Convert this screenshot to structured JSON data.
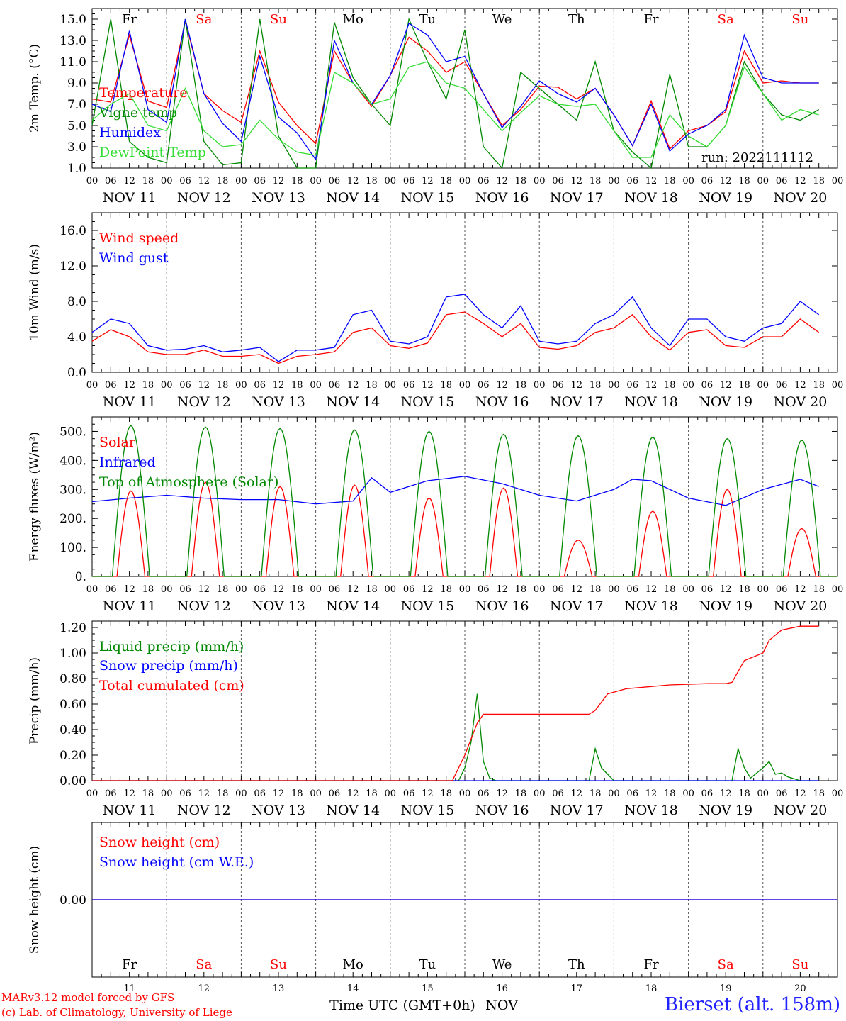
{
  "chart_data": [
    {
      "type": "line",
      "ylabel": "2m Temp. (°C)",
      "ylim": [
        1.0,
        16.0
      ],
      "yticks": [
        "15.0",
        "13.0",
        "11.0",
        "9.0",
        "7.0",
        "5.0",
        "3.0",
        "1.0"
      ],
      "annotation": "run: 2022111112",
      "series": [
        {
          "name": "Temperature",
          "color": "#ff0000",
          "x": [
            0,
            6,
            12,
            18,
            24,
            30,
            36,
            42,
            48,
            54,
            60,
            66,
            72,
            78,
            84,
            90,
            96,
            102,
            108,
            114,
            120,
            126,
            132,
            138,
            144,
            150,
            156,
            162,
            168,
            174,
            180,
            186,
            192,
            198,
            204,
            210,
            216,
            222,
            228,
            234
          ],
          "values": [
            7.5,
            7.2,
            13.5,
            7.3,
            6.7,
            14.8,
            8.0,
            6.4,
            5.3,
            12.0,
            7.2,
            5.0,
            3.3,
            12.0,
            9.0,
            6.8,
            9.7,
            13.3,
            12.0,
            10.0,
            11.0,
            8.0,
            5.0,
            6.5,
            8.7,
            8.6,
            7.5,
            8.5,
            6.0,
            3.1,
            7.3,
            2.8,
            4.5,
            5.0,
            6.3,
            12.0,
            9.0,
            9.2,
            9.0,
            9.0
          ]
        },
        {
          "name": "Vigne temp",
          "color": "#008800",
          "x": [
            0,
            6,
            12,
            18,
            24,
            30,
            36,
            42,
            48,
            54,
            60,
            66,
            72,
            78,
            84,
            90,
            96,
            102,
            108,
            114,
            120,
            126,
            132,
            138,
            144,
            150,
            156,
            162,
            168,
            174,
            180,
            186,
            192,
            198,
            204,
            210,
            216,
            222,
            228,
            234
          ],
          "values": [
            5.0,
            15.0,
            3.5,
            2.0,
            1.5,
            15.0,
            3.5,
            1.3,
            1.5,
            15.0,
            4.0,
            1.0,
            1.0,
            14.7,
            9.5,
            7.0,
            5.0,
            15.0,
            11.0,
            7.5,
            14.0,
            3.0,
            1.0,
            10.0,
            8.5,
            7.0,
            5.5,
            11.0,
            4.5,
            2.5,
            1.0,
            9.8,
            3.0,
            3.0,
            5.0,
            11.0,
            8.0,
            6.0,
            5.5,
            6.5
          ]
        },
        {
          "name": "Humidex",
          "color": "#0000ff",
          "x": [
            0,
            6,
            12,
            18,
            24,
            30,
            36,
            42,
            48,
            54,
            60,
            66,
            72,
            78,
            84,
            90,
            96,
            102,
            108,
            114,
            120,
            126,
            132,
            138,
            144,
            150,
            156,
            162,
            168,
            174,
            180,
            186,
            192,
            198,
            204,
            210,
            216,
            222,
            228,
            234
          ],
          "values": [
            7.0,
            6.3,
            13.9,
            6.5,
            5.3,
            15.0,
            8.0,
            5.2,
            3.5,
            11.5,
            5.8,
            4.3,
            1.8,
            13.0,
            9.0,
            7.0,
            9.7,
            14.6,
            13.5,
            11.0,
            11.5,
            8.0,
            4.8,
            6.8,
            9.2,
            8.0,
            7.2,
            8.5,
            6.0,
            3.1,
            7.0,
            2.6,
            4.2,
            5.0,
            6.5,
            13.5,
            9.5,
            9.0,
            9.0,
            9.0
          ]
        },
        {
          "name": "DewPoint Temp",
          "color": "#33dd33",
          "x": [
            0,
            6,
            12,
            18,
            24,
            30,
            36,
            42,
            48,
            54,
            60,
            66,
            72,
            78,
            84,
            90,
            96,
            102,
            108,
            114,
            120,
            126,
            132,
            138,
            144,
            150,
            156,
            162,
            168,
            174,
            180,
            186,
            192,
            198,
            204,
            210,
            216,
            222,
            228,
            234
          ],
          "values": [
            5.5,
            7.0,
            8.0,
            5.0,
            4.5,
            8.5,
            4.5,
            3.0,
            3.2,
            5.5,
            3.7,
            2.5,
            2.2,
            10.0,
            9.0,
            7.0,
            7.5,
            10.5,
            11.0,
            9.0,
            8.5,
            6.5,
            4.5,
            6.2,
            7.8,
            7.0,
            6.8,
            7.0,
            4.5,
            2.0,
            2.0,
            6.0,
            4.0,
            3.0,
            5.0,
            10.5,
            8.0,
            5.5,
            6.5,
            6.0
          ]
        }
      ]
    },
    {
      "type": "line",
      "ylabel": "10m Wind (m/s)",
      "ylim": [
        0.0,
        18.0
      ],
      "yticks": [
        "16.0",
        "12.0",
        "8.0",
        "4.0",
        "0.0"
      ],
      "reference_line": 5.0,
      "series": [
        {
          "name": "Wind speed",
          "color": "#ff0000",
          "x": [
            0,
            6,
            12,
            18,
            24,
            30,
            36,
            42,
            48,
            54,
            60,
            66,
            72,
            78,
            84,
            90,
            96,
            102,
            108,
            114,
            120,
            126,
            132,
            138,
            144,
            150,
            156,
            162,
            168,
            174,
            180,
            186,
            192,
            198,
            204,
            210,
            216,
            222,
            228,
            234
          ],
          "values": [
            3.5,
            4.8,
            4.0,
            2.3,
            2.0,
            2.0,
            2.5,
            1.8,
            1.8,
            2.0,
            1.0,
            1.8,
            2.0,
            2.3,
            4.5,
            5.0,
            3.0,
            2.7,
            3.3,
            6.5,
            6.8,
            5.5,
            4.0,
            5.5,
            2.8,
            2.6,
            3.0,
            4.5,
            5.0,
            6.5,
            4.0,
            2.5,
            4.5,
            4.8,
            3.0,
            2.8,
            4.0,
            4.0,
            6.0,
            4.5
          ]
        },
        {
          "name": "Wind gust",
          "color": "#0000ff",
          "x": [
            0,
            6,
            12,
            18,
            24,
            30,
            36,
            42,
            48,
            54,
            60,
            66,
            72,
            78,
            84,
            90,
            96,
            102,
            108,
            114,
            120,
            126,
            132,
            138,
            144,
            150,
            156,
            162,
            168,
            174,
            180,
            186,
            192,
            198,
            204,
            210,
            216,
            222,
            228,
            234
          ],
          "values": [
            4.5,
            6.0,
            5.5,
            3.0,
            2.5,
            2.6,
            3.0,
            2.3,
            2.5,
            2.8,
            1.2,
            2.5,
            2.5,
            2.8,
            6.5,
            7.0,
            3.5,
            3.2,
            4.0,
            8.5,
            8.8,
            6.5,
            5.0,
            7.5,
            3.5,
            3.2,
            3.5,
            5.5,
            6.5,
            8.5,
            5.0,
            3.0,
            6.0,
            6.0,
            4.0,
            3.5,
            5.0,
            5.5,
            8.0,
            6.5
          ]
        }
      ]
    },
    {
      "type": "line",
      "ylabel": "Energy fluxes (W/m²)",
      "ylim": [
        0,
        550
      ],
      "yticks": [
        "500.",
        "400.",
        "300.",
        "200.",
        "100.",
        "0."
      ],
      "series": [
        {
          "name": "Solar",
          "color": "#ff0000",
          "peaks": [
            295,
            325,
            310,
            315,
            270,
            305,
            125,
            225,
            300,
            165
          ]
        },
        {
          "name": "Infrared",
          "color": "#0000ff",
          "x": [
            0,
            12,
            24,
            36,
            48,
            60,
            72,
            84,
            90,
            96,
            108,
            120,
            132,
            144,
            156,
            168,
            174,
            180,
            192,
            204,
            216,
            228,
            234
          ],
          "values": [
            258,
            270,
            280,
            270,
            265,
            265,
            250,
            260,
            340,
            290,
            330,
            345,
            320,
            280,
            260,
            300,
            335,
            330,
            270,
            245,
            300,
            335,
            310
          ]
        },
        {
          "name": "Top of Atmosphere (Solar)",
          "color": "#008800",
          "peaks": [
            520,
            515,
            510,
            505,
            500,
            490,
            485,
            480,
            475,
            470
          ]
        }
      ]
    },
    {
      "type": "line",
      "ylabel": "Precip (mm/h)",
      "ylim": [
        0.0,
        1.25
      ],
      "yticks": [
        "1.20",
        "1.00",
        "0.80",
        "0.60",
        "0.40",
        "0.20",
        "0.00"
      ],
      "series": [
        {
          "name": "Liquid precip (mm/h)",
          "color": "#008800",
          "x": [
            0,
            118,
            120,
            122,
            124,
            126,
            128,
            130,
            160,
            162,
            164,
            166,
            168,
            180,
            206,
            208,
            210,
            212,
            216,
            218,
            220,
            222,
            224,
            228,
            234
          ],
          "values": [
            0,
            0,
            0.1,
            0.3,
            0.68,
            0.15,
            0.02,
            0,
            0,
            0.25,
            0.1,
            0.05,
            0,
            0,
            0,
            0.25,
            0.1,
            0.02,
            0.1,
            0.15,
            0.05,
            0.06,
            0.03,
            0,
            0
          ]
        },
        {
          "name": "Snow precip (mm/h)",
          "color": "#0000ff",
          "x": [
            0,
            234
          ],
          "values": [
            0,
            0
          ]
        },
        {
          "name": "Total cumulated (cm)",
          "color": "#ff0000",
          "x": [
            0,
            116,
            120,
            124,
            126,
            160,
            162,
            166,
            172,
            186,
            198,
            204,
            206,
            210,
            216,
            218,
            222,
            228,
            234
          ],
          "values": [
            0,
            0,
            0.2,
            0.45,
            0.52,
            0.52,
            0.55,
            0.68,
            0.72,
            0.75,
            0.76,
            0.76,
            0.77,
            0.94,
            1.0,
            1.1,
            1.18,
            1.21,
            1.21
          ]
        }
      ]
    },
    {
      "type": "line",
      "ylabel": "Snow height (cm)",
      "yticks": [
        "0.00"
      ],
      "series": [
        {
          "name": "Snow height (cm)",
          "color": "#ff0000",
          "x": [
            0,
            240
          ],
          "values": [
            0,
            0
          ]
        },
        {
          "name": "Snow height (cm W.E.)",
          "color": "#0000ff",
          "x": [
            0,
            240
          ],
          "values": [
            0,
            0
          ]
        }
      ]
    }
  ],
  "day_names": [
    "Fr",
    "Sa",
    "Su",
    "Mo",
    "Tu",
    "We",
    "Th",
    "Fr",
    "Sa",
    "Su"
  ],
  "day_name_colors": [
    "#000000",
    "#ff0000",
    "#ff0000",
    "#000000",
    "#000000",
    "#000000",
    "#000000",
    "#000000",
    "#ff0000",
    "#ff0000"
  ],
  "hour_ticks": [
    "00",
    "06",
    "12",
    "18"
  ],
  "date_labels": [
    "NOV 11",
    "NOV 12",
    "NOV 13",
    "NOV 14",
    "NOV 15",
    "NOV 16",
    "NOV 17",
    "NOV 18",
    "NOV 19",
    "NOV 20"
  ],
  "day_numbers": [
    "11",
    "12",
    "13",
    "14",
    "15",
    "16",
    "17",
    "18",
    "19",
    "20"
  ],
  "xlabel": "Time UTC (GMT+0h)",
  "month_label": "NOV",
  "credits": {
    "line1": "MARv3.12 model forced by GFS",
    "line2": "(c) Lab. of Climatology, University of Liege"
  },
  "station": "Bierset (alt. 158m)"
}
